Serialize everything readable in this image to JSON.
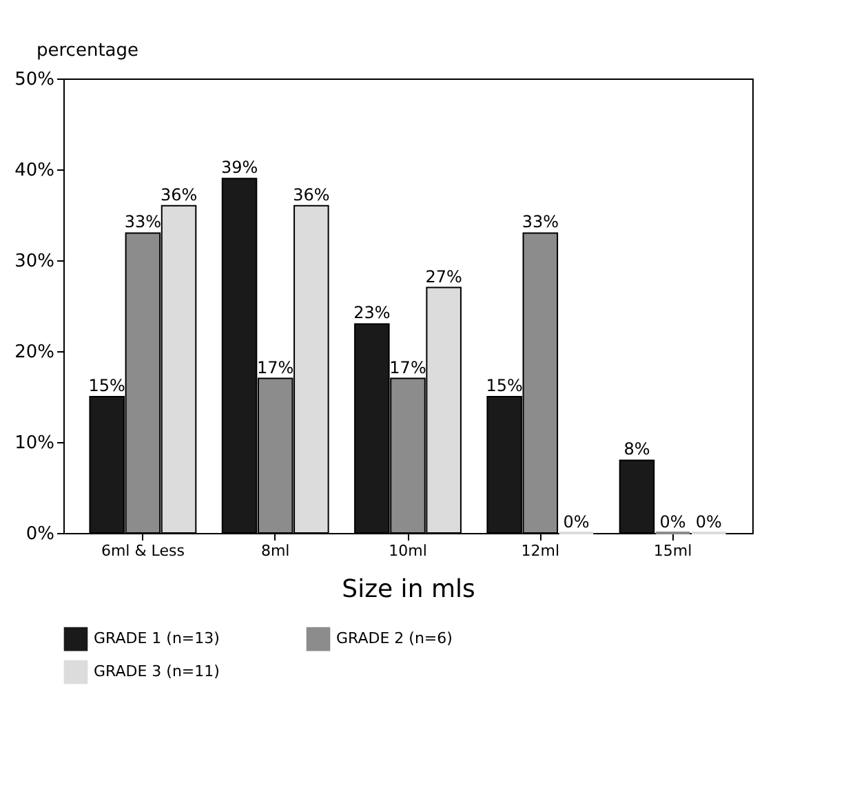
{
  "chart_data": {
    "type": "bar",
    "xlabel": "Size in mls",
    "ylabel": "percentage",
    "categories": [
      "6ml & Less",
      "8ml",
      "10ml",
      "12ml",
      "15ml"
    ],
    "series": [
      {
        "name": "GRADE 1 (n=13)",
        "color": "#1a1a1a",
        "values": [
          15,
          39,
          23,
          15,
          8
        ],
        "value_labels": [
          "15%",
          "39%",
          "23%",
          "15%",
          "8%"
        ]
      },
      {
        "name": "GRADE 2 (n=6)",
        "color": "#8c8c8c",
        "values": [
          33,
          17,
          17,
          33,
          0
        ],
        "value_labels": [
          "33%",
          "17%",
          "17%",
          "33%",
          "0%"
        ]
      },
      {
        "name": "GRADE 3 (n=11)",
        "color": "#dcdcdc",
        "values": [
          36,
          36,
          27,
          0,
          0
        ],
        "value_labels": [
          "36%",
          "36%",
          "27%",
          "0%",
          "0%"
        ]
      }
    ],
    "ylim": [
      0,
      50
    ],
    "yticks": [
      {
        "value": 0,
        "label": "0%"
      },
      {
        "value": 10,
        "label": "10%"
      },
      {
        "value": 20,
        "label": "20%"
      },
      {
        "value": 30,
        "label": "30%"
      },
      {
        "value": 40,
        "label": "40%"
      },
      {
        "value": 50,
        "label": "50%"
      }
    ],
    "grid": false,
    "legend": "bottom"
  }
}
